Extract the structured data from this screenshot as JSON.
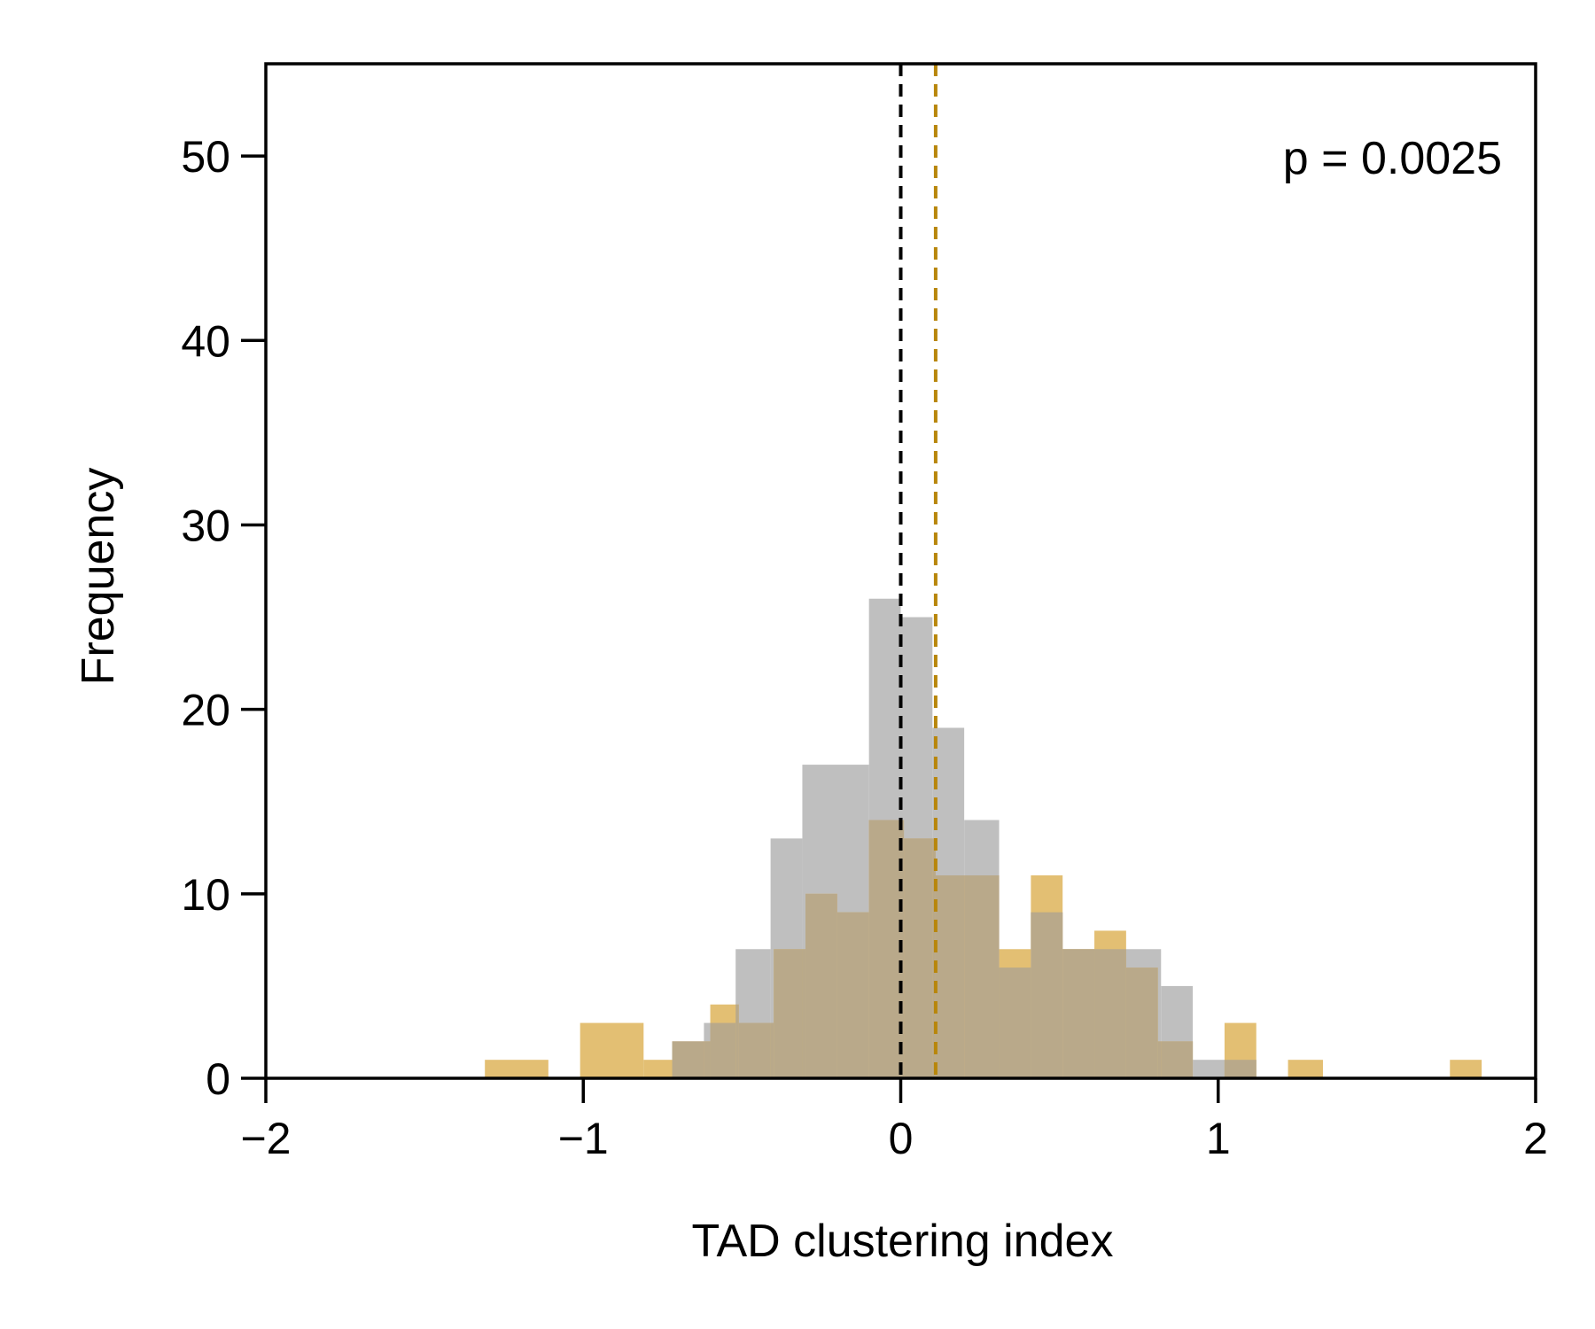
{
  "chart_data": {
    "type": "histogram",
    "xlabel": "TAD clustering index",
    "ylabel": "Frequency",
    "xlim": [
      -2,
      2
    ],
    "ylim": [
      0,
      55
    ],
    "xticks": [
      -2,
      -1,
      0,
      1,
      2
    ],
    "xtick_labels": [
      "−2",
      "−1",
      "0",
      "1",
      "2"
    ],
    "yticks": [
      0,
      10,
      20,
      30,
      40,
      50
    ],
    "ytick_labels": [
      "0",
      "10",
      "20",
      "30",
      "40",
      "50"
    ],
    "grid": false,
    "legend": null,
    "annotation": "p = 0.0025",
    "series": [
      {
        "color": "#bfbfbf",
        "bins": [
          {
            "x0": -0.72,
            "x1": -0.62,
            "count": 2
          },
          {
            "x0": -0.62,
            "x1": -0.52,
            "count": 3
          },
          {
            "x0": -0.52,
            "x1": -0.41,
            "count": 7
          },
          {
            "x0": -0.41,
            "x1": -0.31,
            "count": 13
          },
          {
            "x0": -0.31,
            "x1": -0.1,
            "count": 17
          },
          {
            "x0": -0.1,
            "x1": 0.0,
            "count": 26
          },
          {
            "x0": 0.0,
            "x1": 0.1,
            "count": 25
          },
          {
            "x0": 0.1,
            "x1": 0.2,
            "count": 19
          },
          {
            "x0": 0.2,
            "x1": 0.31,
            "count": 14
          },
          {
            "x0": 0.31,
            "x1": 0.41,
            "count": 6
          },
          {
            "x0": 0.41,
            "x1": 0.51,
            "count": 9
          },
          {
            "x0": 0.51,
            "x1": 0.82,
            "count": 7
          },
          {
            "x0": 0.82,
            "x1": 0.92,
            "count": 5
          },
          {
            "x0": 0.92,
            "x1": 1.12,
            "count": 1
          }
        ]
      },
      {
        "color": "#e3bf73",
        "bins": [
          {
            "x0": -1.31,
            "x1": -1.11,
            "count": 1
          },
          {
            "x0": -1.01,
            "x1": -0.81,
            "count": 3
          },
          {
            "x0": -0.81,
            "x1": -0.72,
            "count": 1
          },
          {
            "x0": -0.72,
            "x1": -0.6,
            "count": 2
          },
          {
            "x0": -0.6,
            "x1": -0.51,
            "count": 4
          },
          {
            "x0": -0.51,
            "x1": -0.4,
            "count": 3
          },
          {
            "x0": -0.4,
            "x1": -0.3,
            "count": 7
          },
          {
            "x0": -0.3,
            "x1": -0.2,
            "count": 10
          },
          {
            "x0": -0.2,
            "x1": -0.1,
            "count": 9
          },
          {
            "x0": -0.1,
            "x1": 0.01,
            "count": 14
          },
          {
            "x0": 0.01,
            "x1": 0.11,
            "count": 13
          },
          {
            "x0": 0.11,
            "x1": 0.31,
            "count": 11
          },
          {
            "x0": 0.31,
            "x1": 0.41,
            "count": 7
          },
          {
            "x0": 0.41,
            "x1": 0.51,
            "count": 11
          },
          {
            "x0": 0.51,
            "x1": 0.61,
            "count": 7
          },
          {
            "x0": 0.61,
            "x1": 0.71,
            "count": 8
          },
          {
            "x0": 0.71,
            "x1": 0.81,
            "count": 6
          },
          {
            "x0": 0.81,
            "x1": 0.92,
            "count": 2
          },
          {
            "x0": 1.02,
            "x1": 1.12,
            "count": 3
          },
          {
            "x0": 1.22,
            "x1": 1.33,
            "count": 1
          },
          {
            "x0": 1.73,
            "x1": 1.83,
            "count": 1
          }
        ]
      }
    ],
    "overlap_color": "#b9a98a",
    "vlines": [
      {
        "x": 0.0,
        "color": "#000000",
        "style": "dashed"
      },
      {
        "x": 0.11,
        "color": "#b8860b",
        "style": "dashed"
      }
    ]
  }
}
